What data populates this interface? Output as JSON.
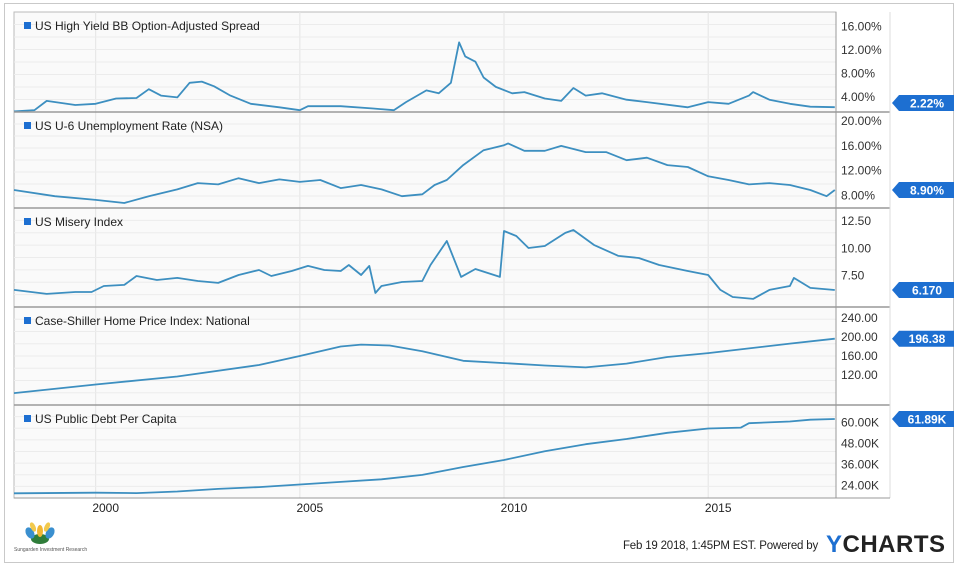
{
  "chart_data": [
    {
      "type": "line",
      "title": "US High Yield BB Option-Adjusted Spread",
      "ylim": [
        1.4,
        18.5
      ],
      "yticks": [
        "16.00%",
        "12.00%",
        "8.00%",
        "4.00%"
      ],
      "ytick_values": [
        16,
        12,
        8,
        4
      ],
      "last_value_label": "2.22%",
      "x": [
        1998.0,
        1998.5,
        1998.8,
        1999.5,
        2000.0,
        2000.5,
        2001.0,
        2001.3,
        2001.6,
        2002.0,
        2002.3,
        2002.6,
        2002.9,
        2003.3,
        2003.8,
        2004.5,
        2005.0,
        2005.2,
        2006.0,
        2006.8,
        2007.3,
        2007.6,
        2008.1,
        2008.4,
        2008.7,
        2008.9,
        2009.05,
        2009.3,
        2009.5,
        2009.8,
        2010.2,
        2010.5,
        2011.0,
        2011.4,
        2011.7,
        2012.0,
        2012.4,
        2013.0,
        2013.5,
        2014.5,
        2015.0,
        2015.5,
        2016.0,
        2016.1,
        2016.5,
        2017.0,
        2017.5,
        2018.1
      ],
      "y": [
        1.5,
        1.7,
        3.3,
        2.6,
        2.8,
        3.7,
        3.8,
        5.3,
        4.2,
        3.9,
        6.4,
        6.6,
        5.8,
        4.2,
        2.8,
        2.2,
        1.7,
        2.4,
        2.4,
        2.0,
        1.7,
        3.1,
        5.1,
        4.6,
        6.4,
        13.3,
        10.9,
        10.0,
        7.3,
        5.7,
        4.6,
        4.8,
        3.7,
        3.3,
        5.5,
        4.2,
        4.6,
        3.5,
        3.1,
        2.2,
        3.1,
        2.8,
        4.2,
        4.8,
        3.5,
        2.8,
        2.3,
        2.22
      ]
    },
    {
      "type": "line",
      "title": "US U-6 Unemployment Rate (NSA)",
      "ylim": [
        6.0,
        21.45
      ],
      "yticks": [
        "20.00%",
        "16.00%",
        "12.00%",
        "8.00%"
      ],
      "ytick_values": [
        20,
        16,
        12,
        8
      ],
      "last_value_label": "8.90%",
      "x": [
        1998.0,
        1999.0,
        2000.0,
        2000.7,
        2001.3,
        2002.0,
        2002.5,
        2003.0,
        2003.5,
        2004.0,
        2004.5,
        2005.0,
        2005.5,
        2006.0,
        2006.5,
        2007.0,
        2007.5,
        2008.0,
        2008.3,
        2008.6,
        2009.0,
        2009.5,
        2010.0,
        2010.1,
        2010.5,
        2011.0,
        2011.4,
        2012.0,
        2012.5,
        2013.0,
        2013.5,
        2014.0,
        2014.5,
        2015.0,
        2015.5,
        2016.0,
        2016.5,
        2017.0,
        2017.5,
        2017.9,
        2018.1
      ],
      "y": [
        8.9,
        7.9,
        7.3,
        6.8,
        7.9,
        9.0,
        10.0,
        9.8,
        10.8,
        10.0,
        10.6,
        10.2,
        10.5,
        9.2,
        9.7,
        9.0,
        7.9,
        8.2,
        9.7,
        10.5,
        12.9,
        15.3,
        16.1,
        16.4,
        15.2,
        15.2,
        16.0,
        15.0,
        15.0,
        13.7,
        14.1,
        12.9,
        12.6,
        11.1,
        10.5,
        9.8,
        10.0,
        9.7,
        8.9,
        7.9,
        8.9
      ]
    },
    {
      "type": "line",
      "title": "US Misery Index",
      "ylim": [
        4.61,
        13.7
      ],
      "yticks": [
        "12.50",
        "10.00",
        "7.50"
      ],
      "ytick_values": [
        12.5,
        10,
        7.5
      ],
      "last_value_label": "6.170",
      "x": [
        1998.0,
        1998.8,
        1999.5,
        1999.9,
        2000.2,
        2000.7,
        2001.0,
        2001.5,
        2002.0,
        2002.5,
        2003.0,
        2003.5,
        2004.0,
        2004.3,
        2004.8,
        2005.2,
        2005.6,
        2006.0,
        2006.2,
        2006.5,
        2006.7,
        2006.85,
        2007.0,
        2007.5,
        2008.0,
        2008.2,
        2008.6,
        2008.95,
        2009.3,
        2009.9,
        2010.0,
        2010.3,
        2010.6,
        2011.0,
        2011.5,
        2011.7,
        2012.2,
        2012.8,
        2013.3,
        2013.8,
        2014.5,
        2015.0,
        2015.3,
        2015.6,
        2016.1,
        2016.5,
        2017.0,
        2017.1,
        2017.5,
        2018.1
      ],
      "y": [
        6.18,
        5.81,
        5.99,
        5.99,
        6.54,
        6.64,
        7.46,
        7.09,
        7.28,
        7.0,
        6.82,
        7.55,
        8.01,
        7.46,
        7.92,
        8.38,
        8.01,
        7.92,
        8.47,
        7.55,
        8.38,
        5.9,
        6.54,
        6.91,
        7.0,
        8.47,
        10.67,
        7.37,
        8.1,
        7.37,
        11.59,
        11.13,
        10.03,
        10.21,
        11.41,
        11.68,
        10.31,
        9.3,
        9.11,
        8.47,
        7.92,
        7.55,
        6.18,
        5.53,
        5.35,
        6.18,
        6.54,
        7.28,
        6.36,
        6.17
      ]
    },
    {
      "type": "line",
      "title": "Case-Shiller Home Price Index: National",
      "ylim": [
        57,
        263
      ],
      "yticks": [
        "240.00",
        "200.00",
        "160.00",
        "120.00"
      ],
      "ytick_values": [
        240,
        200,
        160,
        120
      ],
      "last_value_label": "196.38",
      "x": [
        1998.0,
        2000.0,
        2002.0,
        2004.0,
        2005.0,
        2006.0,
        2006.5,
        2007.2,
        2008.0,
        2009.0,
        2010.0,
        2011.0,
        2012.0,
        2013.0,
        2014.0,
        2015.0,
        2016.0,
        2017.0,
        2018.1
      ],
      "y": [
        82,
        100,
        117,
        141,
        160,
        180,
        184,
        182,
        170,
        150,
        145,
        140,
        136,
        144,
        158,
        166,
        176,
        186,
        196.38
      ]
    },
    {
      "type": "line",
      "title": "US Public Debt Per Capita",
      "ylim": [
        16.8,
        69.9
      ],
      "yticks": [
        "60.00K",
        "48.00K",
        "36.00K",
        "24.00K"
      ],
      "ytick_values": [
        60,
        48,
        36,
        24
      ],
      "last_value_label": "61.89K",
      "x": [
        1998.0,
        2000.0,
        2001.0,
        2002.0,
        2003.0,
        2004.0,
        2005.0,
        2006.0,
        2007.0,
        2008.0,
        2009.0,
        2010.0,
        2011.0,
        2012.0,
        2013.0,
        2014.0,
        2015.0,
        2015.8,
        2016.0,
        2017.0,
        2017.5,
        2018.1
      ],
      "y": [
        19.5,
        19.8,
        19.6,
        20.5,
        22,
        23,
        24.5,
        26,
        27.5,
        30,
        34.5,
        38.5,
        43.5,
        47.5,
        50.5,
        54,
        56.5,
        57,
        59.5,
        60.5,
        61.5,
        61.89
      ]
    }
  ],
  "x_axis": {
    "xlim": [
      1998.0,
      2018.13
    ],
    "tick_values": [
      2000,
      2005,
      2010,
      2015
    ],
    "tick_labels": [
      "2000",
      "2005",
      "2010",
      "2015"
    ]
  },
  "colors": {
    "line": "#3d8fc0",
    "legend": "#1d6fd1",
    "value_label": "#1d6fd1",
    "brand": "#1d6fd1"
  },
  "footer": {
    "timestamp": "Feb 19 2018, 1:45PM EST.  Powered by",
    "brand_y": "Y",
    "brand_rest": "CHARTS",
    "logo_text": "Sungarden Investment Research"
  }
}
